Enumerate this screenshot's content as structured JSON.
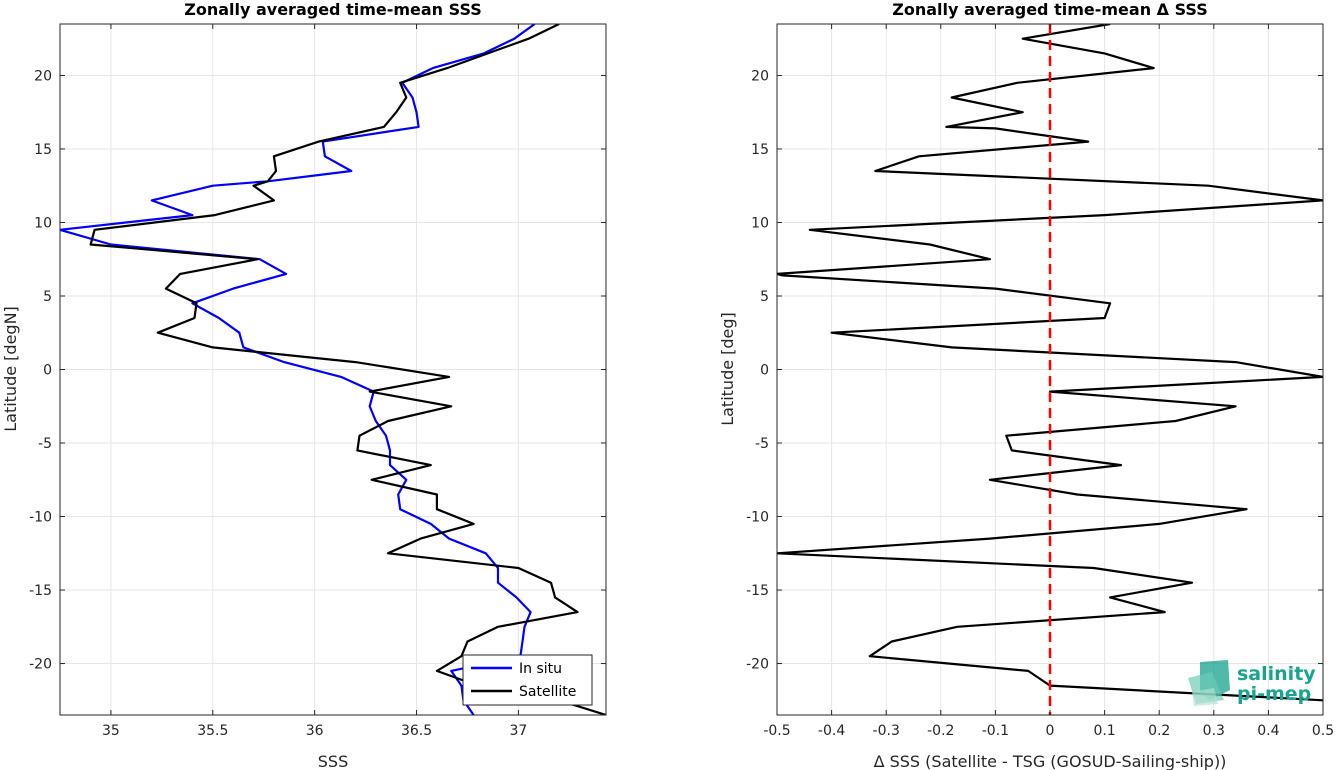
{
  "colors": {
    "insitu": "#0000ff",
    "satellite": "#000000",
    "zero_line": "#ff0000",
    "logo": "#1aa390"
  },
  "logo": {
    "line1": "salinity",
    "line2": "pi-mep"
  },
  "chart_data": [
    {
      "type": "line",
      "title": "Zonally averaged time-mean SSS",
      "xlabel": "SSS",
      "ylabel": "Latitude [degN]",
      "xlim": [
        34.75,
        37.43
      ],
      "ylim": [
        -23.5,
        23.5
      ],
      "xticks": [
        35,
        35.5,
        36,
        36.5,
        37
      ],
      "xtick_labels": [
        "35",
        "35.5",
        "36",
        "36.5",
        "37"
      ],
      "yticks": [
        -20,
        -15,
        -10,
        -5,
        0,
        5,
        10,
        15,
        20
      ],
      "ytick_labels": [
        "-20",
        "-15",
        "-10",
        "-5",
        "0",
        "5",
        "10",
        "15",
        "20"
      ],
      "grid": true,
      "legend_position": "bottom-right",
      "series": [
        {
          "name": "In situ",
          "color": "#0000ff",
          "points": [
            [
              37.08,
              23.5
            ],
            [
              36.98,
              22.5
            ],
            [
              36.83,
              21.5
            ],
            [
              36.58,
              20.5
            ],
            [
              36.43,
              19.5
            ],
            [
              36.48,
              18.5
            ],
            [
              36.5,
              17.5
            ],
            [
              36.51,
              16.5
            ],
            [
              36.04,
              15.5
            ],
            [
              36.05,
              14.5
            ],
            [
              36.18,
              13.5
            ],
            [
              35.77,
              12.8
            ],
            [
              35.5,
              12.5
            ],
            [
              35.2,
              11.5
            ],
            [
              35.4,
              10.5
            ],
            [
              34.75,
              9.5
            ],
            [
              35.0,
              8.5
            ],
            [
              35.73,
              7.5
            ],
            [
              35.86,
              6.5
            ],
            [
              35.6,
              5.5
            ],
            [
              35.4,
              4.5
            ],
            [
              35.53,
              3.5
            ],
            [
              35.63,
              2.5
            ],
            [
              35.65,
              1.5
            ],
            [
              35.85,
              0.5
            ],
            [
              36.13,
              -0.5
            ],
            [
              36.29,
              -1.5
            ],
            [
              36.27,
              -2.5
            ],
            [
              36.3,
              -3.5
            ],
            [
              36.35,
              -4.5
            ],
            [
              36.37,
              -5.5
            ],
            [
              36.37,
              -6.5
            ],
            [
              36.45,
              -7.5
            ],
            [
              36.41,
              -8.5
            ],
            [
              36.42,
              -9.5
            ],
            [
              36.57,
              -10.5
            ],
            [
              36.66,
              -11.5
            ],
            [
              36.84,
              -12.5
            ],
            [
              36.9,
              -13.5
            ],
            [
              36.9,
              -14.5
            ],
            [
              36.99,
              -15.5
            ],
            [
              37.06,
              -16.5
            ],
            [
              37.03,
              -17.5
            ],
            [
              37.02,
              -18.5
            ],
            [
              37.01,
              -19.5
            ],
            [
              36.67,
              -20.5
            ],
            [
              36.72,
              -21.5
            ],
            [
              36.73,
              -22.5
            ],
            [
              36.78,
              -23.5
            ]
          ]
        },
        {
          "name": "Satellite",
          "color": "#000000",
          "points": [
            [
              37.2,
              23.5
            ],
            [
              37.05,
              22.5
            ],
            [
              36.85,
              21.5
            ],
            [
              36.65,
              20.5
            ],
            [
              36.42,
              19.5
            ],
            [
              36.45,
              18.5
            ],
            [
              36.4,
              17.5
            ],
            [
              36.34,
              16.5
            ],
            [
              36.02,
              15.5
            ],
            [
              35.8,
              14.5
            ],
            [
              35.81,
              13.5
            ],
            [
              35.77,
              12.8
            ],
            [
              35.7,
              12.5
            ],
            [
              35.8,
              11.5
            ],
            [
              35.51,
              10.5
            ],
            [
              34.92,
              9.5
            ],
            [
              34.9,
              8.5
            ],
            [
              35.72,
              7.5
            ],
            [
              35.34,
              6.5
            ],
            [
              35.27,
              5.5
            ],
            [
              35.42,
              4.5
            ],
            [
              35.41,
              3.5
            ],
            [
              35.23,
              2.5
            ],
            [
              35.5,
              1.5
            ],
            [
              36.2,
              0.5
            ],
            [
              36.66,
              -0.5
            ],
            [
              36.27,
              -1.5
            ],
            [
              36.67,
              -2.5
            ],
            [
              36.36,
              -3.5
            ],
            [
              36.22,
              -4.5
            ],
            [
              36.21,
              -5.5
            ],
            [
              36.57,
              -6.5
            ],
            [
              36.28,
              -7.5
            ],
            [
              36.6,
              -8.5
            ],
            [
              36.6,
              -9.5
            ],
            [
              36.78,
              -10.5
            ],
            [
              36.52,
              -11.5
            ],
            [
              36.36,
              -12.5
            ],
            [
              37.0,
              -13.5
            ],
            [
              37.16,
              -14.5
            ],
            [
              37.18,
              -15.5
            ],
            [
              37.29,
              -16.5
            ],
            [
              36.9,
              -17.5
            ],
            [
              36.75,
              -18.5
            ],
            [
              36.72,
              -19.5
            ],
            [
              36.6,
              -20.5
            ],
            [
              36.8,
              -21.5
            ],
            [
              37.2,
              -22.5
            ],
            [
              37.43,
              -23.5
            ]
          ]
        }
      ]
    },
    {
      "type": "line",
      "title": "Zonally averaged time-mean Δ SSS",
      "xlabel": "Δ SSS (Satellite - TSG (GOSUD-Sailing-ship))",
      "ylabel": "Latitude [deg]",
      "xlim": [
        -0.5,
        0.5
      ],
      "ylim": [
        -23.5,
        23.5
      ],
      "xticks": [
        -0.5,
        -0.4,
        -0.3,
        -0.2,
        -0.1,
        0,
        0.1,
        0.2,
        0.3,
        0.4,
        0.5
      ],
      "xtick_labels": [
        "-0.5",
        "-0.4",
        "-0.3",
        "-0.2",
        "-0.1",
        "0",
        "0.1",
        "0.2",
        "0.3",
        "0.4",
        "0.5"
      ],
      "yticks": [
        -20,
        -15,
        -10,
        -5,
        0,
        5,
        10,
        15,
        20
      ],
      "ytick_labels": [
        "-20",
        "-15",
        "-10",
        "-5",
        "0",
        "5",
        "10",
        "15",
        "20"
      ],
      "grid": true,
      "reference_line": {
        "x": 0,
        "color": "#ff0000",
        "style": "dashed"
      },
      "series": [
        {
          "color": "#000000",
          "points": [
            [
              0.11,
              23.5
            ],
            [
              -0.05,
              22.5
            ],
            [
              0.1,
              21.5
            ],
            [
              0.19,
              20.5
            ],
            [
              -0.06,
              19.5
            ],
            [
              -0.18,
              18.5
            ],
            [
              -0.05,
              17.5
            ],
            [
              -0.19,
              16.5
            ],
            [
              -0.1,
              16.4
            ],
            [
              0.07,
              15.5
            ],
            [
              -0.24,
              14.5
            ],
            [
              -0.32,
              13.5
            ],
            [
              0.29,
              12.5
            ],
            [
              0.5,
              11.5
            ],
            [
              0.1,
              10.5
            ],
            [
              -0.44,
              9.5
            ],
            [
              -0.22,
              8.5
            ],
            [
              -0.11,
              7.5
            ],
            [
              -0.5,
              6.5
            ],
            [
              -0.49,
              6.4
            ],
            [
              -0.1,
              5.5
            ],
            [
              0.11,
              4.5
            ],
            [
              0.1,
              3.5
            ],
            [
              -0.4,
              2.5
            ],
            [
              -0.18,
              1.5
            ],
            [
              0.34,
              0.5
            ],
            [
              0.5,
              -0.5
            ],
            [
              0.0,
              -1.5
            ],
            [
              0.34,
              -2.5
            ],
            [
              0.23,
              -3.5
            ],
            [
              -0.08,
              -4.5
            ],
            [
              -0.07,
              -5.5
            ],
            [
              0.13,
              -6.5
            ],
            [
              -0.11,
              -7.5
            ],
            [
              0.05,
              -8.5
            ],
            [
              0.36,
              -9.5
            ],
            [
              0.2,
              -10.5
            ],
            [
              -0.11,
              -11.5
            ],
            [
              -0.5,
              -12.5
            ],
            [
              0.08,
              -13.5
            ],
            [
              0.26,
              -14.5
            ],
            [
              0.11,
              -15.5
            ],
            [
              0.21,
              -16.5
            ],
            [
              -0.17,
              -17.5
            ],
            [
              -0.29,
              -18.5
            ],
            [
              -0.33,
              -19.5
            ],
            [
              -0.04,
              -20.5
            ],
            [
              0.0,
              -21.5
            ],
            [
              0.5,
              -22.5
            ]
          ]
        }
      ]
    }
  ]
}
